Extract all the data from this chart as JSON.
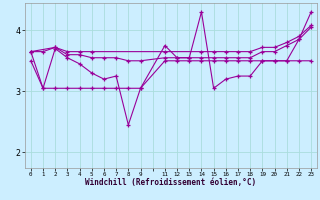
{
  "xlabel": "Windchill (Refroidissement éolien,°C)",
  "bg_color": "#cceeff",
  "grid_color": "#aadddd",
  "line_color": "#990099",
  "xlim": [
    -0.5,
    23.5
  ],
  "ylim": [
    1.75,
    4.45
  ],
  "yticks": [
    2,
    3,
    4
  ],
  "xtick_positions": [
    0,
    1,
    2,
    3,
    4,
    5,
    6,
    7,
    8,
    9,
    10,
    11,
    12,
    13,
    14,
    15,
    16,
    17,
    18,
    19,
    20,
    21,
    22,
    23
  ],
  "xtick_labels": [
    "0",
    "1",
    "2",
    "3",
    "4",
    "5",
    "6",
    "7",
    "8",
    "9",
    "",
    "11",
    "12",
    "13",
    "14",
    "15",
    "16",
    "17",
    "18",
    "19",
    "20",
    "21",
    "22",
    "23"
  ],
  "series": {
    "line1_zigzag": {
      "x": [
        0,
        1,
        2,
        3,
        4,
        5,
        6,
        7,
        8,
        9,
        11,
        12,
        13,
        14,
        15,
        16,
        17,
        18,
        19,
        20,
        21,
        22,
        23
      ],
      "y": [
        3.65,
        3.05,
        3.7,
        3.55,
        3.45,
        3.3,
        3.2,
        3.25,
        2.45,
        3.05,
        3.75,
        3.55,
        3.55,
        4.3,
        3.05,
        3.2,
        3.25,
        3.25,
        3.5,
        3.5,
        3.5,
        3.85,
        4.3
      ]
    },
    "line2_flat": {
      "x": [
        0,
        1,
        2,
        3,
        4,
        5,
        6,
        7,
        8,
        9,
        11,
        12,
        13,
        14,
        15,
        16,
        17,
        18,
        19,
        20,
        21,
        22,
        23
      ],
      "y": [
        3.5,
        3.05,
        3.05,
        3.05,
        3.05,
        3.05,
        3.05,
        3.05,
        3.05,
        3.05,
        3.5,
        3.5,
        3.5,
        3.5,
        3.5,
        3.5,
        3.5,
        3.5,
        3.5,
        3.5,
        3.5,
        3.5,
        3.5
      ]
    },
    "line3_upper": {
      "x": [
        0,
        1,
        2,
        3,
        4,
        5,
        6,
        7,
        8,
        9,
        11,
        12,
        13,
        14,
        15,
        16,
        17,
        18,
        19,
        20,
        21,
        22,
        23
      ],
      "y": [
        3.65,
        3.65,
        3.72,
        3.6,
        3.6,
        3.55,
        3.55,
        3.55,
        3.5,
        3.5,
        3.55,
        3.55,
        3.55,
        3.55,
        3.55,
        3.55,
        3.55,
        3.55,
        3.65,
        3.65,
        3.75,
        3.85,
        4.05
      ]
    },
    "line4_trend": {
      "x": [
        0,
        2,
        3,
        4,
        5,
        11,
        14,
        15,
        16,
        17,
        18,
        19,
        20,
        21,
        22,
        23
      ],
      "y": [
        3.65,
        3.72,
        3.65,
        3.65,
        3.65,
        3.65,
        3.65,
        3.65,
        3.65,
        3.65,
        3.65,
        3.72,
        3.72,
        3.8,
        3.9,
        4.08
      ]
    }
  }
}
